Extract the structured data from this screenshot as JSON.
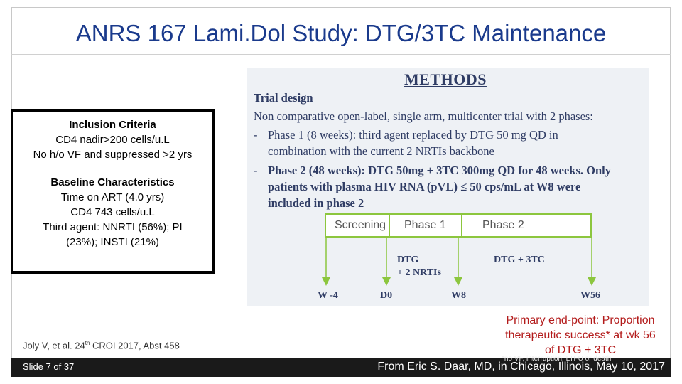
{
  "slide": {
    "title": "ANRS 167 Lami.Dol Study: DTG/3TC Maintenance",
    "number_label": "Slide 7 of 37"
  },
  "criteria": {
    "inclusion_heading": "Inclusion Criteria",
    "inclusion_lines": [
      "CD4 nadir>200 cells/u.L",
      "No h/o VF and suppressed >2 yrs"
    ],
    "baseline_heading": "Baseline Characteristics",
    "baseline_lines": [
      "Time on ART (4.0 yrs)",
      "CD4 743 cells/u.L",
      "Third agent: NNRTI (56%); PI",
      "(23%); INSTI (21%)"
    ]
  },
  "methods": {
    "heading": "METHODS",
    "trial_design_label": "Trial design",
    "lines": [
      "Non comparative open-label, single arm, multicenter trial with 2 phases:",
      "Phase 1 (8 weeks): third agent replaced by DTG 50 mg QD in",
      "combination with the current 2 NRTIs backbone",
      "Phase 2 (48 weeks): DTG 50mg + 3TC 300mg QD for 48 weeks. Only",
      "patients with plasma HIV RNA (pVL) ≤  50 cps/mL at W8 were",
      "included in phase 2"
    ],
    "bullet": "-",
    "phases": [
      "Screening",
      "Phase 1",
      "Phase 2"
    ],
    "regimens": [
      "DTG",
      "+ 2 NRTIs",
      "DTG + 3TC"
    ],
    "timepoints": [
      "W -4",
      "D0",
      "W8",
      "W56"
    ],
    "colors": {
      "phase_border": "#8cc63e",
      "text": "#2f3c64"
    }
  },
  "citation": {
    "prefix": "Joly V, et al. 24",
    "sup": "th",
    "suffix": " CROI 2017, Abst 458"
  },
  "endpoint": {
    "lines": [
      "Primary end-point: Proportion",
      "therapeutic success* at wk 56",
      "of DTG + 3TC"
    ],
    "footnote": "*no VF, interruption, LTFU or death"
  },
  "footer": {
    "source": "From Eric S. Daar, MD, in Chicago, Illinois, May 10, 2017"
  }
}
